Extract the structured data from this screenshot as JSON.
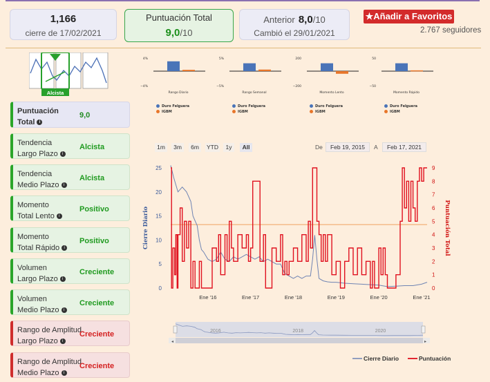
{
  "header": {
    "price_card": {
      "value": "1,166",
      "caption": "cierre de 17/02/2021"
    },
    "score_card": {
      "title": "Puntuación Total",
      "value": "9,0",
      "suffix": "/10"
    },
    "prev_card": {
      "label": "Anterior",
      "value": "8,0",
      "suffix": "/10",
      "caption": "Cambió el 29/01/2021"
    },
    "favorite_label": "Añadir a Favoritos",
    "followers": "2.767 seguidores"
  },
  "trend_badge": "Alcista",
  "sidebar": [
    {
      "line1": "Puntuación",
      "line2": "Total",
      "value": "9,0",
      "style": "blue",
      "valueColor": "#228b22"
    },
    {
      "line1": "Tendencia",
      "line2": "Largo Plazo",
      "value": "Alcista",
      "style": "green",
      "valueColor": "#1f9a1f"
    },
    {
      "line1": "Tendencia",
      "line2": "Medio Plazo",
      "value": "Alcista",
      "style": "green",
      "valueColor": "#1f9a1f"
    },
    {
      "line1": "Momento",
      "line2": "Total Lento",
      "value": "Positivo",
      "style": "green",
      "valueColor": "#1f9a1f"
    },
    {
      "line1": "Momento",
      "line2": "Total Rápido",
      "value": "Positivo",
      "style": "green",
      "valueColor": "#1f9a1f"
    },
    {
      "line1": "Volumen",
      "line2": "Largo Plazo",
      "value": "Creciente",
      "style": "green",
      "valueColor": "#1f9a1f"
    },
    {
      "line1": "Volumen",
      "line2": "Medio Plazo",
      "value": "Creciente",
      "style": "green",
      "valueColor": "#1f9a1f"
    },
    {
      "line1": "Rango de Amplitud",
      "line2": "Largo Plazo",
      "value": "Creciente",
      "style": "red",
      "valueColor": "#d42020"
    },
    {
      "line1": "Rango de Amplitud",
      "line2": "Medio Plazo",
      "value": "Creciente",
      "style": "red",
      "valueColor": "#d42020"
    }
  ],
  "mini_charts": [
    {
      "title": "Rango Diario",
      "ymax": "4%",
      "ymin": "−4%",
      "blue": 3.0,
      "orange": 0.4,
      "ylim": [
        -4,
        4
      ]
    },
    {
      "title": "Rango Semanal",
      "ymax": "5%",
      "ymin": "−5%",
      "blue": 3.0,
      "orange": 0.6,
      "ylim": [
        -5,
        5
      ]
    },
    {
      "title": "Momento Lento",
      "ymax": "200",
      "ymin": "−200",
      "blue": 120,
      "orange": -40,
      "ylim": [
        -200,
        200
      ]
    },
    {
      "title": "Momento Rápido",
      "ymax": "50",
      "ymin": "−50",
      "blue": 30,
      "orange": 3,
      "ylim": [
        -50,
        50
      ]
    }
  ],
  "mini_legend": {
    "series1": "Duro Felguera",
    "series2": "IGBM"
  },
  "range_selector": {
    "buttons": [
      "1m",
      "3m",
      "6m",
      "YTD",
      "1y",
      "All"
    ],
    "active": "All",
    "from_label": "De",
    "from": "Feb 19, 2015",
    "to_label": "A",
    "to": "Feb 17, 2021"
  },
  "colors": {
    "price": "#6f84b3",
    "score": "#e0101e",
    "threshold": "#f0a060",
    "accent": "#d32b2b"
  },
  "chart_data": {
    "type": "line",
    "ylabel_left": "Cierre Diario",
    "ylabel_right": "Puntuación Total",
    "left_ticks": [
      "0",
      "5",
      "10",
      "15",
      "20",
      "25"
    ],
    "right_ticks": [
      "0",
      "1",
      "2",
      "3",
      "4",
      "5",
      "6",
      "7",
      "8",
      "9"
    ],
    "x_ticks": [
      "Ene '16",
      "Ene '17",
      "Ene '18",
      "Ene '19",
      "Ene '20",
      "Ene '21"
    ],
    "ylim_left": [
      0,
      25
    ],
    "ylim_right": [
      0,
      9
    ],
    "threshold": 4.75,
    "navigator_ticks": [
      "2016",
      "2018",
      "2020"
    ],
    "legend": [
      "Cierre Diario",
      "Puntuación"
    ],
    "series": [
      {
        "name": "Cierre Diario",
        "axis": "left",
        "points": [
          [
            2015.13,
            25.5
          ],
          [
            2015.2,
            23
          ],
          [
            2015.3,
            20
          ],
          [
            2015.4,
            21
          ],
          [
            2015.5,
            20
          ],
          [
            2015.6,
            18
          ],
          [
            2015.65,
            15
          ],
          [
            2015.7,
            14
          ],
          [
            2015.75,
            13
          ],
          [
            2015.8,
            10
          ],
          [
            2015.85,
            8
          ],
          [
            2015.9,
            7.5
          ],
          [
            2016.0,
            6
          ],
          [
            2016.1,
            5.5
          ],
          [
            2016.2,
            6
          ],
          [
            2016.3,
            7.5
          ],
          [
            2016.4,
            6
          ],
          [
            2016.5,
            5.5
          ],
          [
            2016.6,
            6.5
          ],
          [
            2016.7,
            6
          ],
          [
            2016.8,
            6.5
          ],
          [
            2016.9,
            7
          ],
          [
            2017.0,
            6.5
          ],
          [
            2017.1,
            6
          ],
          [
            2017.2,
            6.5
          ],
          [
            2017.3,
            5.5
          ],
          [
            2017.4,
            6
          ],
          [
            2017.5,
            5.5
          ],
          [
            2017.6,
            5
          ],
          [
            2017.7,
            5
          ],
          [
            2017.8,
            3
          ],
          [
            2017.9,
            2.5
          ],
          [
            2018.0,
            2
          ],
          [
            2018.1,
            2.5
          ],
          [
            2018.2,
            2
          ],
          [
            2018.3,
            2.5
          ],
          [
            2018.4,
            2.5
          ],
          [
            2018.45,
            6
          ],
          [
            2018.5,
            11
          ],
          [
            2018.55,
            6
          ],
          [
            2018.6,
            2
          ],
          [
            2018.7,
            1.5
          ],
          [
            2018.8,
            1.3
          ],
          [
            2018.9,
            1.2
          ],
          [
            2019.0,
            1.2
          ],
          [
            2019.2,
            1
          ],
          [
            2019.4,
            0.9
          ],
          [
            2019.6,
            0.8
          ],
          [
            2019.8,
            0.7
          ],
          [
            2020.0,
            0.6
          ],
          [
            2020.2,
            0.3
          ],
          [
            2020.4,
            0.4
          ],
          [
            2020.6,
            0.5
          ],
          [
            2020.8,
            0.5
          ],
          [
            2021.0,
            0.8
          ],
          [
            2021.13,
            1.2
          ]
        ]
      },
      {
        "name": "Puntuación",
        "axis": "right",
        "points": [
          [
            2015.13,
            9
          ],
          [
            2015.15,
            0
          ],
          [
            2015.18,
            3
          ],
          [
            2015.22,
            1
          ],
          [
            2015.25,
            4
          ],
          [
            2015.28,
            0
          ],
          [
            2015.3,
            4
          ],
          [
            2015.35,
            6
          ],
          [
            2015.4,
            2
          ],
          [
            2015.45,
            5
          ],
          [
            2015.5,
            3
          ],
          [
            2015.55,
            5
          ],
          [
            2015.6,
            0
          ],
          [
            2015.65,
            2
          ],
          [
            2015.7,
            0
          ],
          [
            2015.75,
            0
          ],
          [
            2015.8,
            2
          ],
          [
            2015.85,
            0
          ],
          [
            2015.9,
            0
          ],
          [
            2016.05,
            0
          ],
          [
            2016.1,
            3
          ],
          [
            2016.2,
            2
          ],
          [
            2016.25,
            4
          ],
          [
            2016.3,
            1
          ],
          [
            2016.4,
            4
          ],
          [
            2016.45,
            2
          ],
          [
            2016.5,
            5
          ],
          [
            2016.55,
            3
          ],
          [
            2016.6,
            2
          ],
          [
            2016.7,
            4
          ],
          [
            2016.8,
            3
          ],
          [
            2016.9,
            4
          ],
          [
            2016.95,
            2
          ],
          [
            2017.0,
            3
          ],
          [
            2017.05,
            8
          ],
          [
            2017.2,
            8
          ],
          [
            2017.22,
            2
          ],
          [
            2017.3,
            4
          ],
          [
            2017.35,
            0
          ],
          [
            2017.45,
            0
          ],
          [
            2017.5,
            3
          ],
          [
            2017.6,
            2
          ],
          [
            2017.7,
            4
          ],
          [
            2017.75,
            1
          ],
          [
            2017.8,
            2
          ],
          [
            2017.85,
            1
          ],
          [
            2017.9,
            2
          ],
          [
            2018.0,
            3
          ],
          [
            2018.1,
            2
          ],
          [
            2018.2,
            4
          ],
          [
            2018.3,
            2
          ],
          [
            2018.35,
            5
          ],
          [
            2018.4,
            3
          ],
          [
            2018.45,
            9
          ],
          [
            2018.5,
            9
          ],
          [
            2018.55,
            5
          ],
          [
            2018.6,
            4
          ],
          [
            2018.65,
            2
          ],
          [
            2018.7,
            4
          ],
          [
            2018.75,
            2
          ],
          [
            2018.8,
            4
          ],
          [
            2018.9,
            1
          ],
          [
            2019.0,
            2
          ],
          [
            2019.1,
            0
          ],
          [
            2019.2,
            2
          ],
          [
            2019.3,
            3
          ],
          [
            2019.4,
            1
          ],
          [
            2019.5,
            3
          ],
          [
            2019.6,
            1
          ],
          [
            2019.7,
            2
          ],
          [
            2019.8,
            0
          ],
          [
            2019.85,
            2
          ],
          [
            2019.9,
            0
          ],
          [
            2020.0,
            3
          ],
          [
            2020.05,
            1
          ],
          [
            2020.1,
            3
          ],
          [
            2020.15,
            1
          ],
          [
            2020.2,
            0
          ],
          [
            2020.3,
            0
          ],
          [
            2020.4,
            1
          ],
          [
            2020.5,
            5
          ],
          [
            2020.55,
            9
          ],
          [
            2020.6,
            6
          ],
          [
            2020.65,
            8
          ],
          [
            2020.7,
            5
          ],
          [
            2020.75,
            8
          ],
          [
            2020.8,
            6
          ],
          [
            2020.85,
            5
          ],
          [
            2020.9,
            8
          ],
          [
            2020.95,
            9
          ],
          [
            2021.0,
            8
          ],
          [
            2021.05,
            9
          ],
          [
            2021.13,
            9
          ]
        ]
      }
    ]
  }
}
